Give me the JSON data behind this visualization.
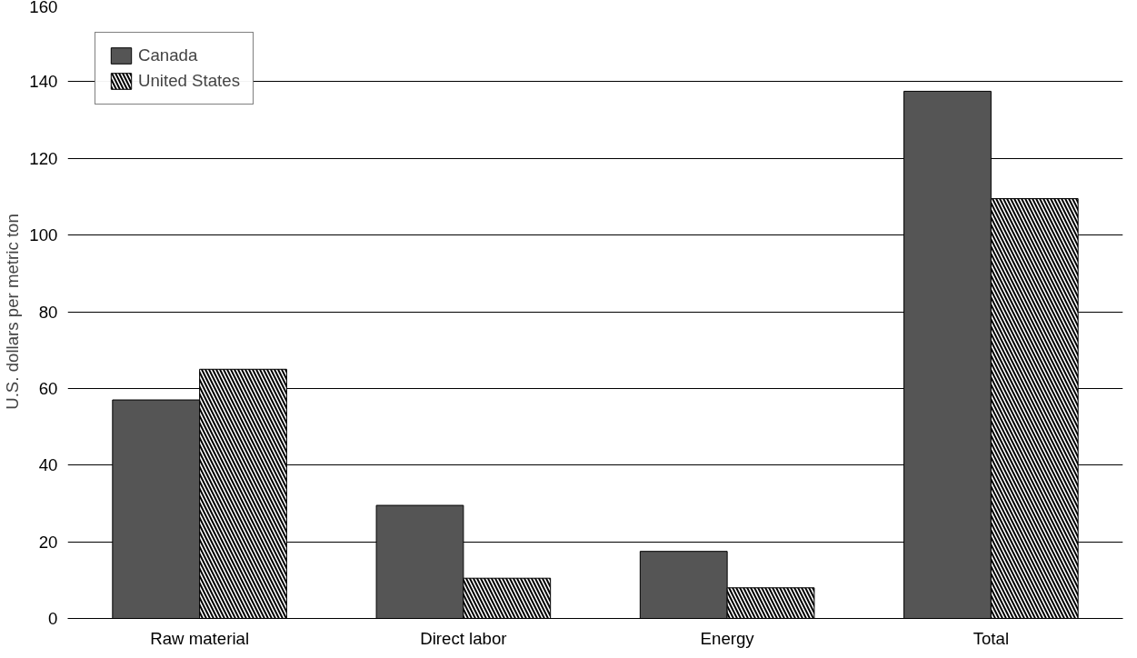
{
  "chart_data": {
    "type": "bar",
    "ylabel": "U.S. dollars per metric ton",
    "categories": [
      "Raw material",
      "Direct labor",
      "Energy",
      "Total"
    ],
    "series": [
      {
        "name": "Canada",
        "color": "#555555",
        "values": [
          57,
          29.5,
          17.5,
          137.5
        ]
      },
      {
        "name": "United States",
        "color": "#ffffff",
        "values": [
          65,
          10.5,
          8,
          109.5
        ]
      }
    ],
    "ylim": [
      0,
      160
    ],
    "yticks": [
      0,
      20,
      40,
      60,
      80,
      100,
      120,
      140,
      160
    ],
    "grid": "y",
    "legend": "top left"
  }
}
